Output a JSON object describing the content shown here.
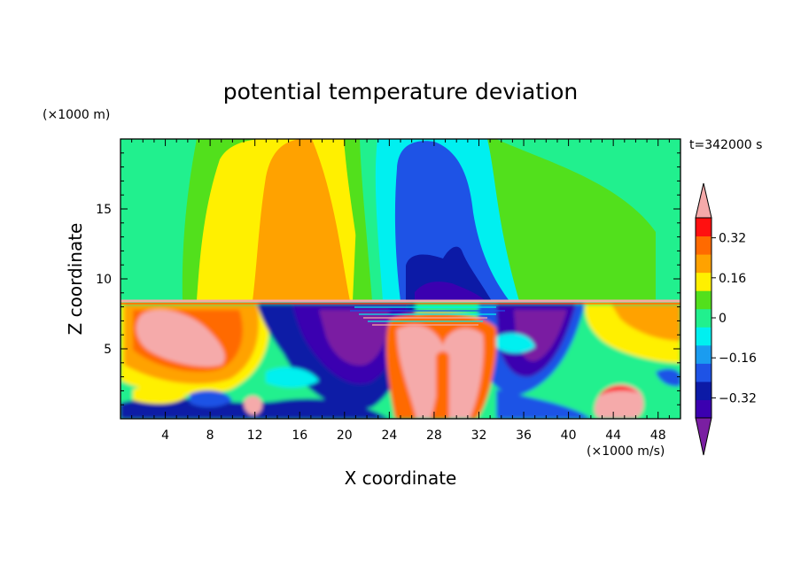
{
  "chart_data": {
    "type": "heatmap",
    "title": "potential temperature deviation",
    "time_label": "t=342000 s",
    "xlabel": "X coordinate",
    "ylabel": "Z coordinate",
    "x_unit": "(×1000 m/s)",
    "y_unit": "(×1000 m)",
    "xlim": [
      0,
      50
    ],
    "ylim": [
      0,
      20
    ],
    "x_ticks": [
      4,
      8,
      12,
      16,
      20,
      24,
      28,
      32,
      36,
      40,
      44,
      48
    ],
    "y_ticks": [
      5,
      10,
      15
    ],
    "colorbar": {
      "levels": [
        -0.4,
        -0.32,
        -0.24,
        -0.16,
        -0.08,
        0,
        0.08,
        0.16,
        0.24,
        0.32,
        0.4
      ],
      "tick_labels": [
        "0.32",
        "0.16",
        "0",
        "−0.16",
        "−0.32"
      ],
      "tick_values": [
        0.32,
        0.16,
        0,
        -0.16,
        -0.32
      ],
      "colors": [
        "#7a1fa2",
        "#3b00b0",
        "#0c1aa6",
        "#1e53e6",
        "#1a9cf0",
        "#00f0f0",
        "#21f08e",
        "#52e01c",
        "#fff000",
        "#ffa200",
        "#ff6a00",
        "#ff1010",
        "#f5aaaa"
      ]
    }
  }
}
